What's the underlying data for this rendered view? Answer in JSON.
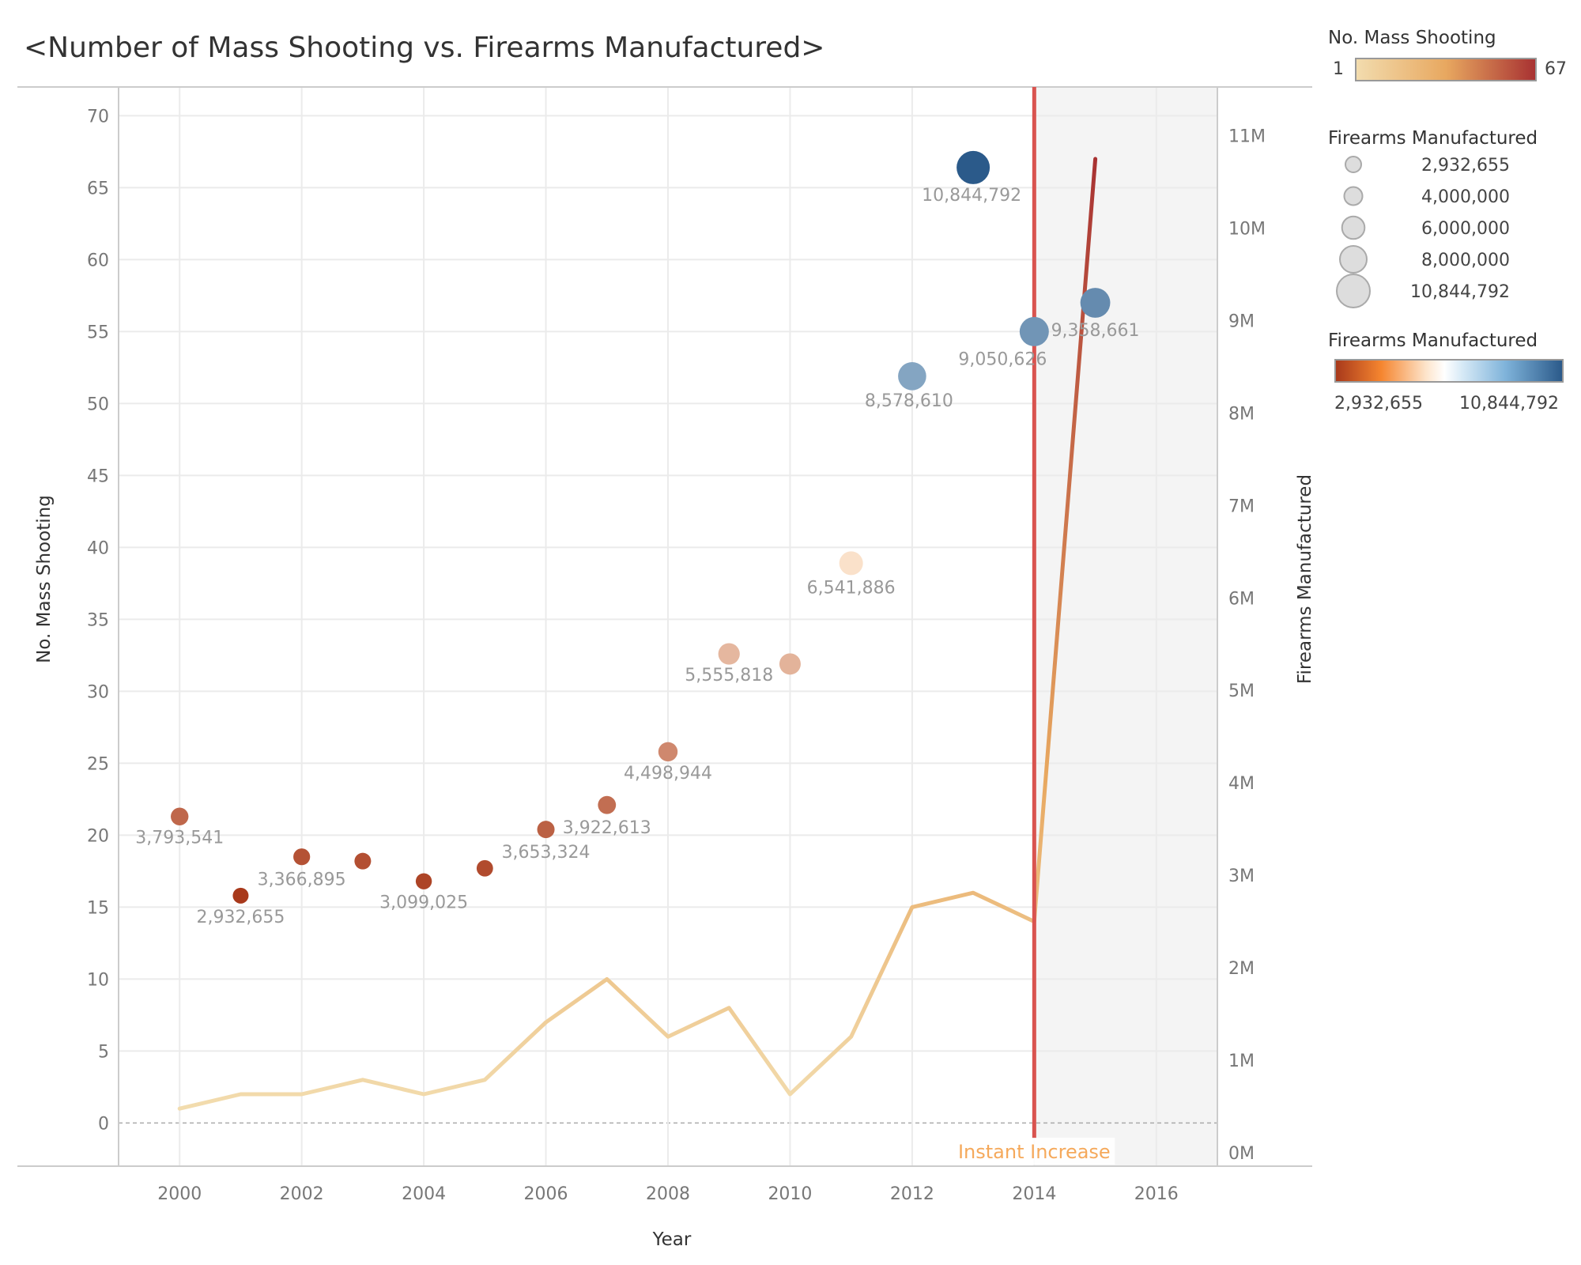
{
  "title": "<Number of Mass Shooting vs. Firearms Manufactured>",
  "legend": {
    "count_title": "No. Mass Shooting",
    "count_min": "1",
    "count_max": "67",
    "size_title": "Firearms Manufactured",
    "size_labels": [
      "2,932,655",
      "4,000,000",
      "6,000,000",
      "8,000,000",
      "10,844,792"
    ],
    "color_title": "Firearms Manufactured",
    "color_min": "2,932,655",
    "color_max": "10,844,792"
  },
  "colors": {
    "count_low": "#f2dcae",
    "count_high": "#a83232",
    "fire_low": "#a8391b",
    "fire_mid": "#ffffff",
    "fire_high": "#2b5a8a",
    "reference_line": "#d9534f",
    "annotation": "#f5a95b"
  },
  "chart_data": {
    "type": "scatter+line",
    "xlabel": "Year",
    "ylabel_left": "No. Mass Shooting",
    "ylabel_right": "Firearms Manufactured",
    "xlim": [
      1999,
      2017
    ],
    "x_ticks": [
      2000,
      2002,
      2004,
      2006,
      2008,
      2010,
      2012,
      2014,
      2016
    ],
    "ylim_left": [
      -3,
      72
    ],
    "y_ticks_left": [
      0,
      5,
      10,
      15,
      20,
      25,
      30,
      35,
      40,
      45,
      50,
      55,
      60,
      65,
      70
    ],
    "y_ticks_right": [
      "0M",
      "1M",
      "2M",
      "3M",
      "4M",
      "5M",
      "6M",
      "7M",
      "8M",
      "9M",
      "10M",
      "11M"
    ],
    "grid": true,
    "legend_position": "right",
    "scatter": {
      "name": "Firearms Manufactured",
      "x": [
        2000,
        2001,
        2002,
        2003,
        2004,
        2005,
        2006,
        2007,
        2008,
        2009,
        2010,
        2011,
        2012,
        2013,
        2014,
        2015
      ],
      "y": [
        21.3,
        15.8,
        18.5,
        18.2,
        16.8,
        17.7,
        20.4,
        22.1,
        25.8,
        32.6,
        31.9,
        38.9,
        51.9,
        66.4,
        55.0,
        57.0
      ],
      "firearms": [
        3793541,
        2932655,
        3366895,
        3309000,
        3099025,
        3241000,
        3653324,
        3922613,
        4498944,
        5555818,
        5459240,
        6541886,
        8578610,
        10844792,
        9050626,
        9358661
      ],
      "labels": [
        "3,793,541",
        "2,932,655",
        "3,366,895",
        "",
        "3,099,025",
        "",
        "3,653,324",
        "3,922,613",
        "4,498,944",
        "5,555,818",
        "",
        "6,541,886",
        "8,578,610",
        "10,844,792",
        "9,050,626",
        "9,358,661"
      ]
    },
    "line": {
      "name": "No. Mass Shooting",
      "x": [
        2000,
        2001,
        2002,
        2003,
        2004,
        2005,
        2006,
        2007,
        2008,
        2009,
        2010,
        2011,
        2012,
        2013,
        2014,
        2015
      ],
      "values": [
        1,
        2,
        2,
        3,
        2,
        3,
        7,
        10,
        6,
        8,
        2,
        6,
        15,
        16,
        14,
        67
      ]
    },
    "reference_line": {
      "x": 2014,
      "label": "Instant Increase"
    },
    "shaded_region": [
      2014,
      2017
    ]
  }
}
